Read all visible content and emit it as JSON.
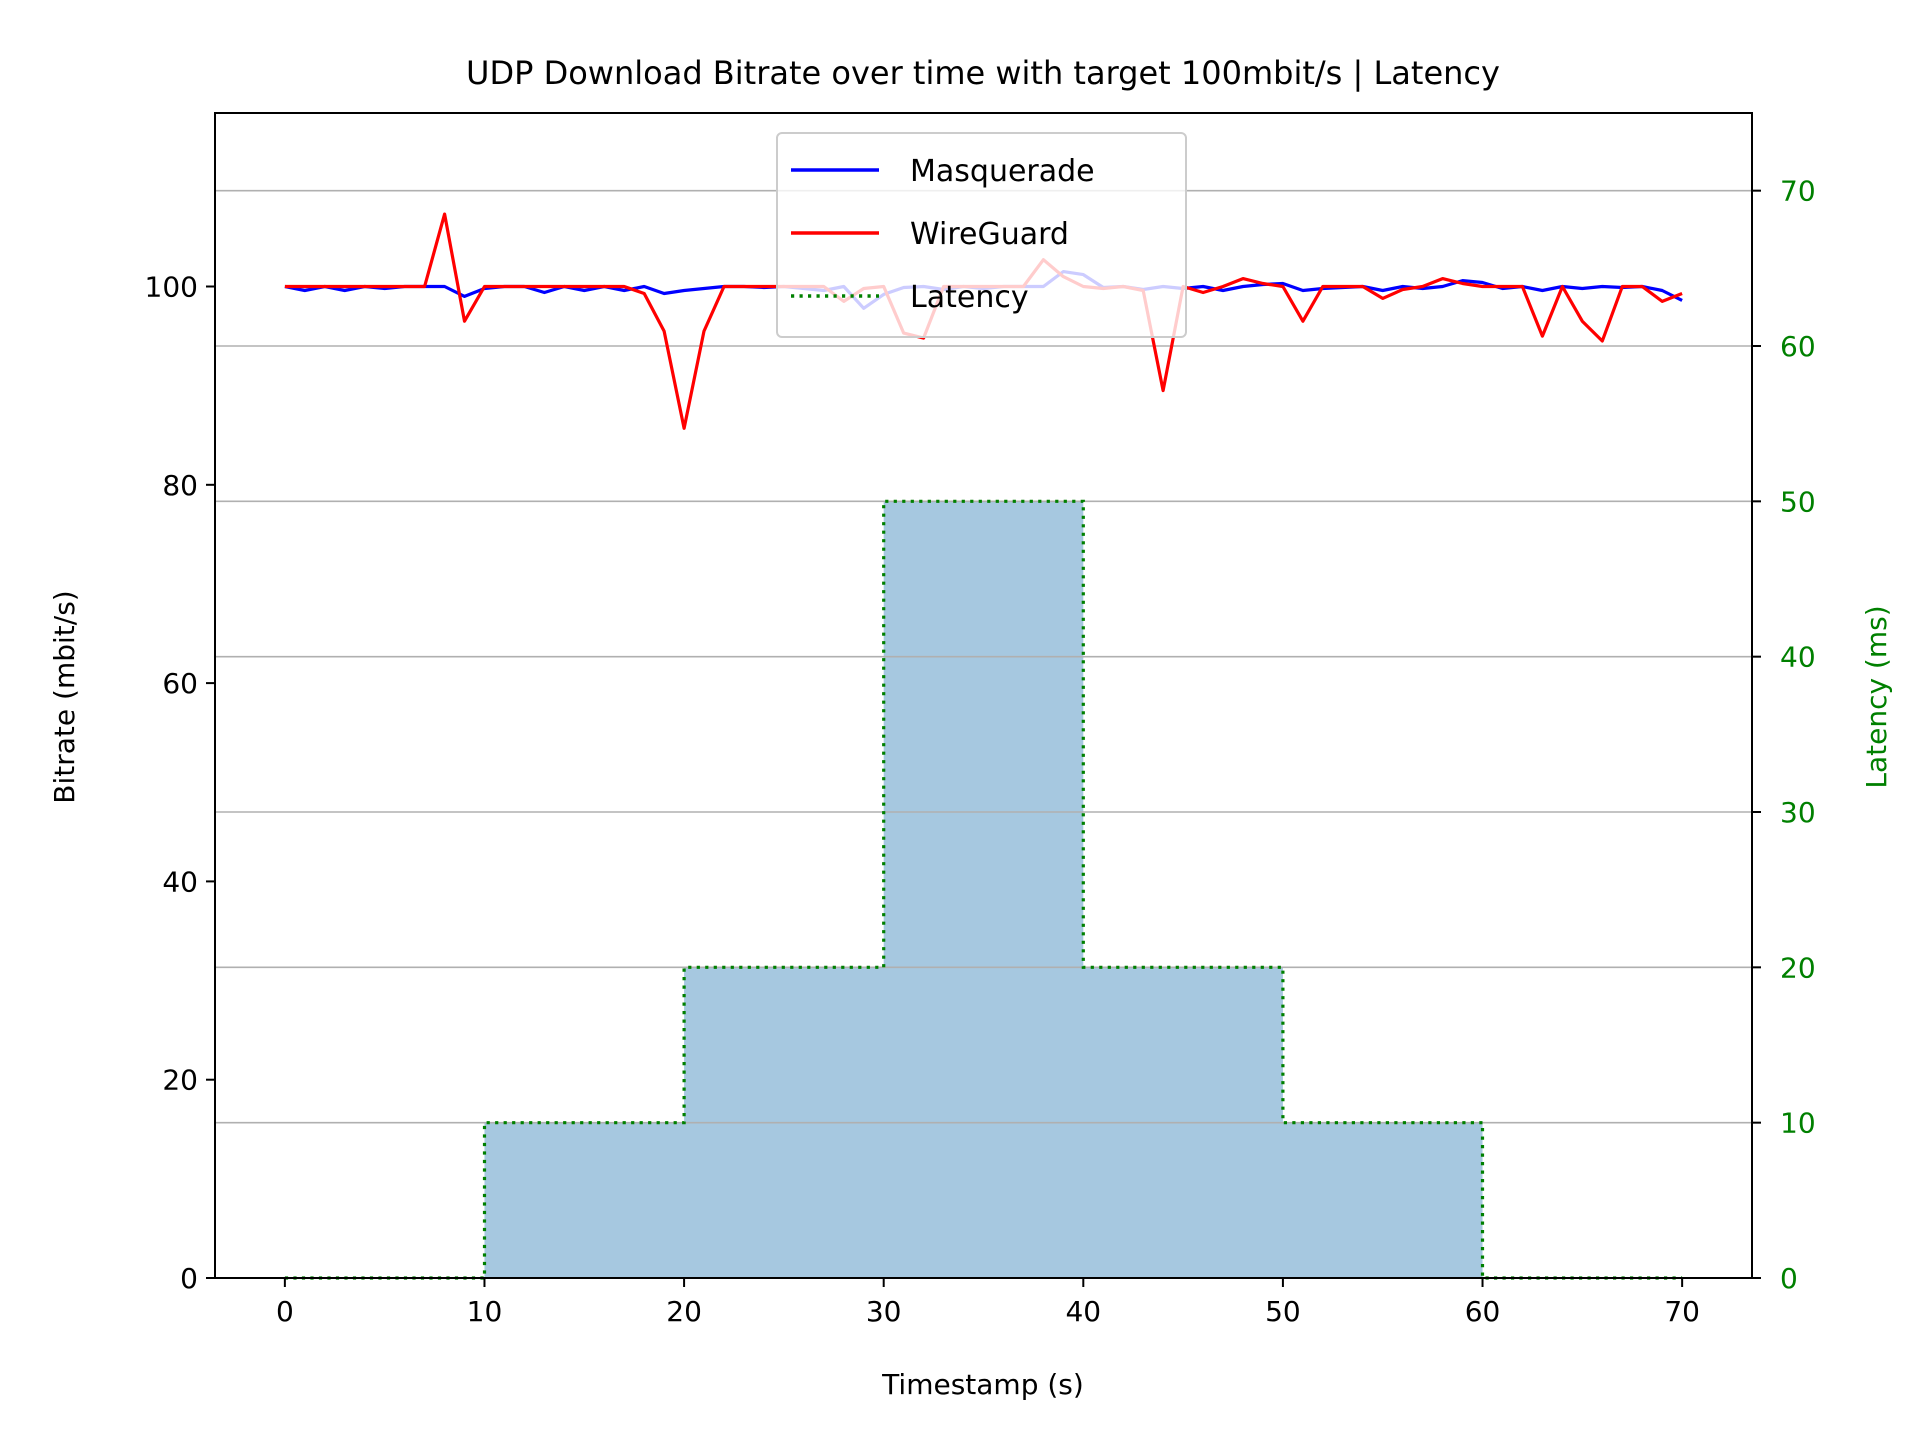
{
  "chart_data": {
    "type": "line",
    "title": "UDP Download Bitrate over time with target 100mbit/s | Latency",
    "xlabel": "Timestamp (s)",
    "ylabel": "Bitrate (mbit/s)",
    "y2label": "Latency (ms)",
    "xlim": [
      -3.5,
      73.5
    ],
    "ylim": [
      0,
      117.5
    ],
    "y2lim": [
      0,
      75
    ],
    "xticks": [
      "0",
      "10",
      "20",
      "30",
      "40",
      "50",
      "60",
      "70"
    ],
    "yticks": [
      "0",
      "20",
      "40",
      "60",
      "80",
      "100"
    ],
    "y2ticks": [
      "0",
      "10",
      "20",
      "30",
      "40",
      "50",
      "60",
      "70"
    ],
    "grid": "horizontal lines at right-axis ticks",
    "legend_position": "upper center",
    "colors": {
      "masquerade": "#0000ff",
      "wireguard": "#ff0000",
      "latency": "#008000",
      "latency_fill": "#a6c8e0",
      "right_axis": "#008000"
    },
    "series": [
      {
        "name": "Masquerade",
        "axis": "left",
        "x": [
          0,
          1,
          2,
          3,
          4,
          5,
          6,
          7,
          8,
          9,
          10,
          11,
          12,
          13,
          14,
          15,
          16,
          17,
          18,
          19,
          20,
          21,
          22,
          23,
          24,
          25,
          26,
          27,
          28,
          29,
          30,
          31,
          32,
          33,
          34,
          35,
          36,
          37,
          38,
          39,
          40,
          41,
          42,
          43,
          44,
          45,
          46,
          47,
          48,
          49,
          50,
          51,
          52,
          53,
          54,
          55,
          56,
          57,
          58,
          59,
          60,
          61,
          62,
          63,
          64,
          65,
          66,
          67,
          68,
          69,
          70
        ],
        "values": [
          100.0,
          99.6,
          100.0,
          99.6,
          100.0,
          99.8,
          100.0,
          100.0,
          100.0,
          99.0,
          99.8,
          100.0,
          100.0,
          99.4,
          100.0,
          99.6,
          100.0,
          99.6,
          100.0,
          99.3,
          99.6,
          99.8,
          100.0,
          100.0,
          99.9,
          100.0,
          99.8,
          99.6,
          100.0,
          97.8,
          99.2,
          99.9,
          100.0,
          99.7,
          100.0,
          99.8,
          100.0,
          100.0,
          100.0,
          101.5,
          101.2,
          99.9,
          100.0,
          99.7,
          100.0,
          99.8,
          100.0,
          99.6,
          100.0,
          100.2,
          100.3,
          99.6,
          99.8,
          99.9,
          100.0,
          99.6,
          100.0,
          99.8,
          100.0,
          100.6,
          100.4,
          99.8,
          100.0,
          99.6,
          100.0,
          99.8,
          100.0,
          99.9,
          100.0,
          99.6,
          98.6
        ]
      },
      {
        "name": "WireGuard",
        "axis": "left",
        "x": [
          0,
          1,
          2,
          3,
          4,
          5,
          6,
          7,
          8,
          9,
          10,
          11,
          12,
          13,
          14,
          15,
          16,
          17,
          18,
          19,
          20,
          21,
          22,
          23,
          24,
          25,
          26,
          27,
          28,
          29,
          30,
          31,
          32,
          33,
          34,
          35,
          36,
          37,
          38,
          39,
          40,
          41,
          42,
          43,
          44,
          45,
          46,
          47,
          48,
          49,
          50,
          51,
          52,
          53,
          54,
          55,
          56,
          57,
          58,
          59,
          60,
          61,
          62,
          63,
          64,
          65,
          66,
          67,
          68,
          69,
          70
        ],
        "values": [
          100.0,
          100.0,
          100.0,
          100.0,
          100.0,
          100.0,
          100.0,
          100.0,
          107.3,
          96.5,
          100.0,
          100.0,
          100.0,
          100.0,
          100.0,
          100.0,
          100.0,
          100.0,
          99.3,
          95.5,
          85.7,
          95.5,
          100.0,
          100.0,
          100.0,
          100.0,
          100.0,
          100.0,
          98.5,
          99.8,
          100.0,
          95.3,
          94.8,
          100.0,
          100.0,
          100.0,
          100.0,
          100.0,
          102.7,
          101.0,
          100.0,
          99.8,
          100.0,
          99.6,
          89.5,
          100.0,
          99.4,
          100.0,
          100.8,
          100.3,
          100.0,
          96.5,
          100.0,
          100.0,
          100.0,
          98.8,
          99.7,
          100.0,
          100.8,
          100.3,
          100.0,
          100.0,
          100.0,
          95.0,
          100.0,
          96.5,
          94.5,
          100.0,
          100.0,
          98.5,
          99.3
        ]
      },
      {
        "name": "Latency",
        "axis": "right",
        "style": "dotted step",
        "x": [
          0,
          10,
          10,
          20,
          20,
          30,
          30,
          40,
          40,
          50,
          50,
          60,
          60,
          70
        ],
        "values": [
          0,
          0,
          10,
          10,
          20,
          20,
          50,
          50,
          20,
          20,
          10,
          10,
          0,
          0
        ]
      }
    ]
  }
}
